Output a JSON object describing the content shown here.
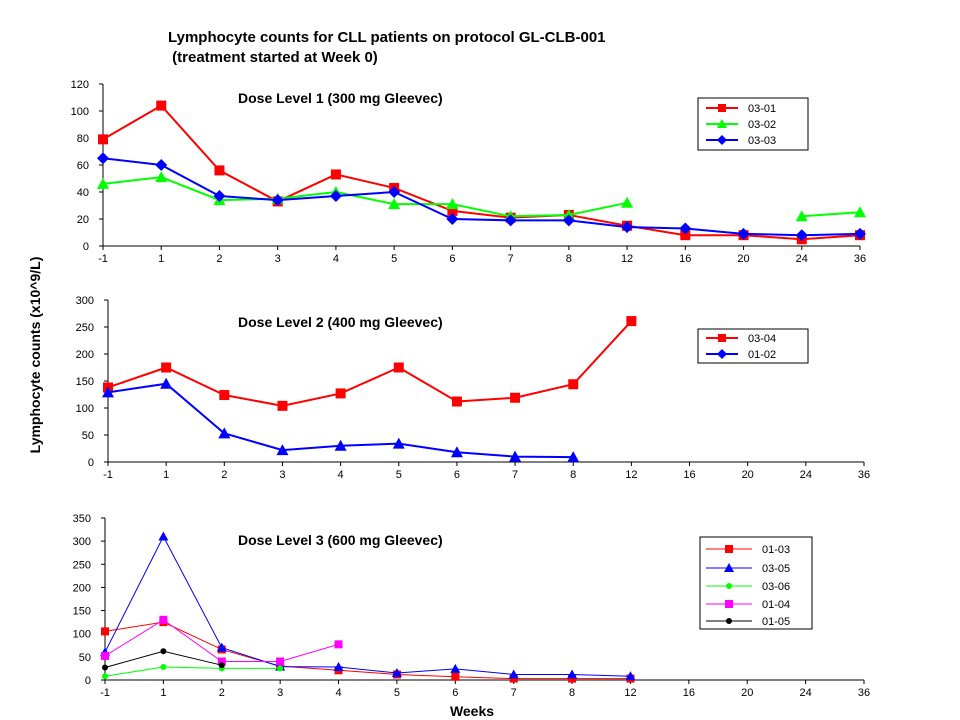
{
  "title_line1": "Lymphocyte counts for CLL patients on protocol GL-CLB-001",
  "title_line2": " (treatment started at Week 0)",
  "ylabel": "Lymphocyte counts (x10^9/L)",
  "xlabel": "Weeks",
  "chart_data": [
    {
      "type": "line",
      "title": "Dose Level 1 (300 mg Gleevec)",
      "categories": [
        "-1",
        "1",
        "2",
        "3",
        "4",
        "5",
        "6",
        "7",
        "8",
        "12",
        "16",
        "20",
        "24",
        "36"
      ],
      "ylim": [
        0,
        120
      ],
      "yticks": [
        0,
        20,
        40,
        60,
        80,
        100,
        120
      ],
      "grid": false,
      "legend_position": "top-right",
      "series": [
        {
          "name": "03-01",
          "color": "#ff0000",
          "marker": "square",
          "values": [
            79,
            104,
            56,
            33,
            53,
            43,
            26,
            21,
            23,
            15,
            8,
            8,
            5,
            8
          ]
        },
        {
          "name": "03-02",
          "color": "#00ff00",
          "marker": "triangle",
          "values": [
            46,
            51,
            34,
            35,
            40,
            31,
            31,
            22,
            23,
            32,
            null,
            null,
            22,
            25
          ]
        },
        {
          "name": "03-03",
          "color": "#0000ff",
          "marker": "diamond",
          "values": [
            65,
            60,
            37,
            34,
            37,
            40,
            20,
            19,
            19,
            14,
            13,
            9,
            8,
            9
          ]
        }
      ]
    },
    {
      "type": "line",
      "title": "Dose Level 2 (400 mg Gleevec)",
      "categories": [
        "-1",
        "1",
        "2",
        "3",
        "4",
        "5",
        "6",
        "7",
        "8",
        "12",
        "16",
        "20",
        "24",
        "36"
      ],
      "ylim": [
        0,
        300
      ],
      "yticks": [
        0,
        50,
        100,
        150,
        200,
        250,
        300
      ],
      "grid": false,
      "legend_position": "top-right",
      "series": [
        {
          "name": "03-04",
          "color": "#ff0000",
          "marker": "square",
          "values": [
            138,
            175,
            124,
            104,
            127,
            175,
            112,
            119,
            144,
            261,
            null,
            null,
            null,
            null
          ]
        },
        {
          "name": "01-02",
          "color": "#0000ff",
          "marker": "triangle",
          "legend_marker": "diamond",
          "values": [
            129,
            145,
            53,
            22,
            30,
            34,
            18,
            10,
            9,
            null,
            null,
            null,
            null,
            null
          ]
        }
      ]
    },
    {
      "type": "line",
      "title": "Dose Level 3 (600 mg Gleevec)",
      "categories": [
        "-1",
        "1",
        "2",
        "3",
        "4",
        "5",
        "6",
        "7",
        "8",
        "12",
        "16",
        "20",
        "24",
        "36"
      ],
      "ylim": [
        0,
        350
      ],
      "yticks": [
        0,
        50,
        100,
        150,
        200,
        250,
        300,
        350
      ],
      "grid": false,
      "legend_position": "right",
      "series": [
        {
          "name": "01-03",
          "color": "#ff0000",
          "marker": "square",
          "values": [
            105,
            125,
            66,
            30,
            21,
            12,
            7,
            3,
            3,
            3,
            null,
            null,
            null,
            null
          ]
        },
        {
          "name": "03-05",
          "color": "#0000ff",
          "marker": "triangle",
          "values": [
            60,
            310,
            70,
            29,
            28,
            15,
            24,
            12,
            12,
            8,
            null,
            null,
            null,
            null
          ]
        },
        {
          "name": "03-06",
          "color": "#00ff00",
          "marker": "circle",
          "values": [
            8,
            28,
            25,
            25,
            null,
            null,
            null,
            null,
            null,
            null,
            null,
            null,
            null,
            null
          ]
        },
        {
          "name": "01-04",
          "color": "#ff00ff",
          "marker": "square",
          "values": [
            52,
            130,
            40,
            40,
            77,
            null,
            null,
            null,
            null,
            null,
            null,
            null,
            null,
            null
          ]
        },
        {
          "name": "01-05",
          "color": "#000000",
          "marker": "circle",
          "values": [
            27,
            62,
            32,
            null,
            null,
            null,
            null,
            null,
            null,
            null,
            null,
            null,
            null,
            null
          ]
        }
      ]
    }
  ]
}
